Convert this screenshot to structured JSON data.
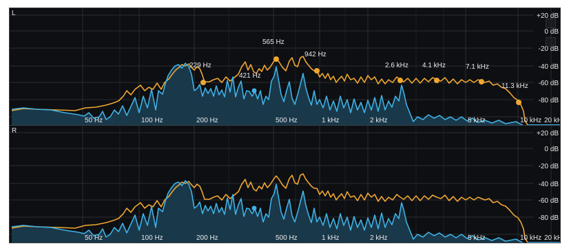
{
  "channels": [
    {
      "label": "L",
      "show_peaks": true
    },
    {
      "label": "R",
      "show_peaks": false
    }
  ],
  "x_ticks": [
    "50 Hz",
    "100 Hz",
    "200 Hz",
    "500 Hz",
    "1 kHz",
    "2 kHz",
    "5 kHz",
    "10 kHz",
    "20 kHz"
  ],
  "y_ticks": [
    "+20 dB",
    "0 dB",
    "-20 dB",
    "-40 dB",
    "-60 dB",
    "-80 dB"
  ],
  "peak_labels": [
    "229 Hz",
    "421 Hz",
    "565 Hz",
    "942 Hz",
    "2.6 kHz",
    "4.1 kHz",
    "7.1 kHz",
    "11.3 kHz"
  ],
  "colors": {
    "background": "#0d0f12",
    "grid": "#2a2e33",
    "peak_hold": "#f0a632",
    "spectrum_line": "#3fb2e6",
    "spectrum_fill": "#19384a",
    "text": "#e8e8e8"
  }
}
